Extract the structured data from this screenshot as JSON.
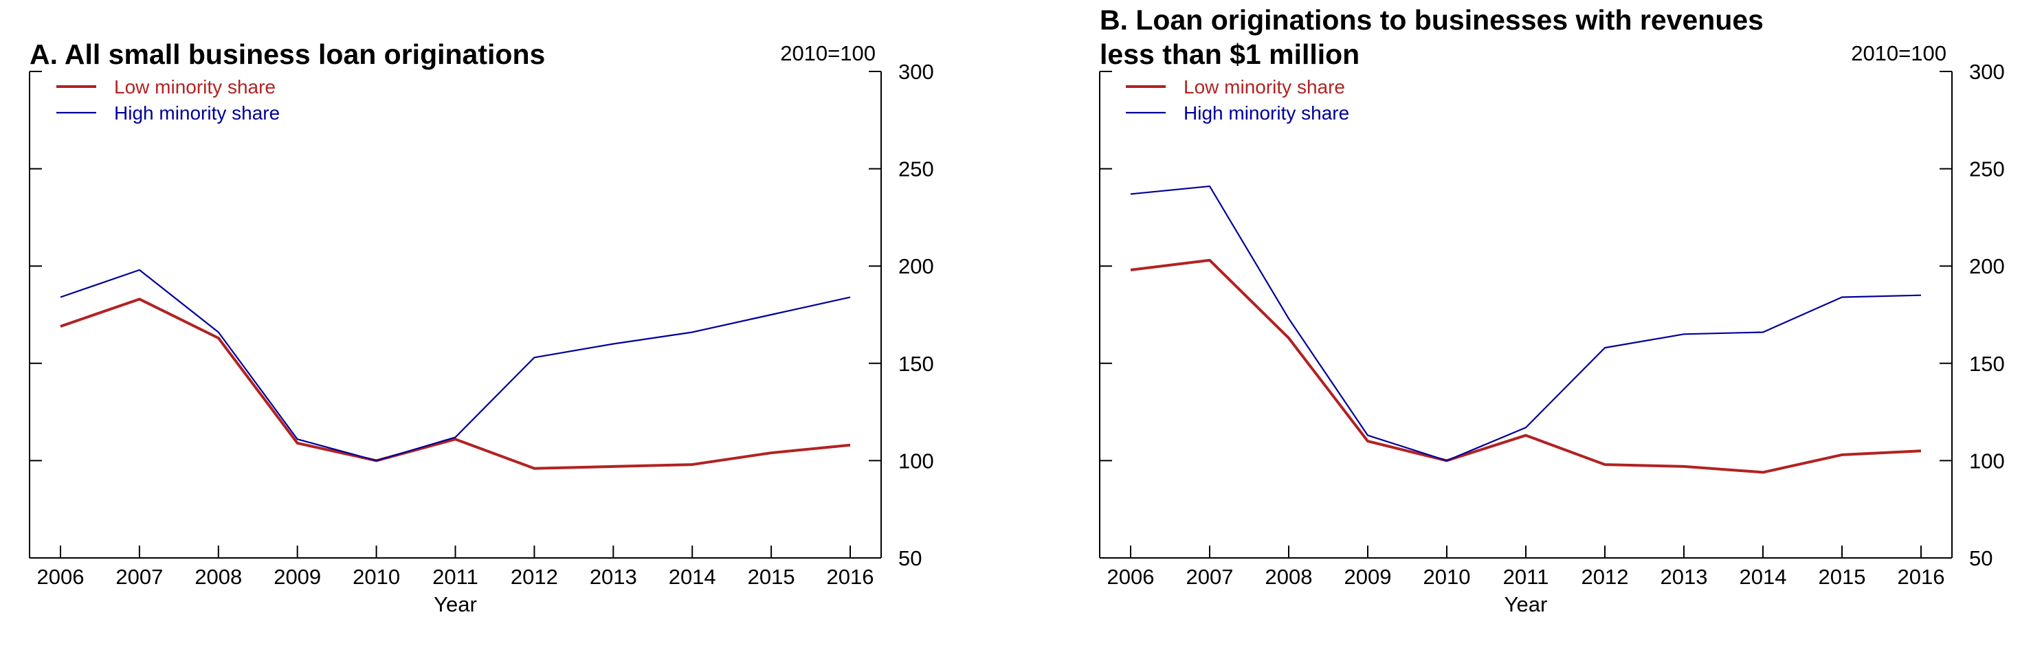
{
  "chart_data": [
    {
      "type": "line",
      "title": "A. All small business loan originations",
      "title_lines": [
        "A. All small business loan originations"
      ],
      "units_label": "2010=100",
      "xlabel": "Year",
      "ylabel": "",
      "x": [
        2006,
        2007,
        2008,
        2009,
        2010,
        2011,
        2012,
        2013,
        2014,
        2015,
        2016
      ],
      "ylim": [
        50,
        300
      ],
      "yticks": [
        50,
        100,
        150,
        200,
        250,
        300
      ],
      "grid": false,
      "legend_position": "top-left",
      "series": [
        {
          "name": "Low minority share",
          "color": "#b22222",
          "values": [
            169,
            183,
            163,
            109,
            100,
            111,
            96,
            97,
            98,
            104,
            108
          ]
        },
        {
          "name": "High minority share",
          "color": "#000099",
          "values": [
            184,
            198,
            166,
            111,
            100,
            112,
            153,
            160,
            166,
            175,
            184
          ]
        }
      ]
    },
    {
      "type": "line",
      "title": "B. Loan originations to businesses with revenues less than $1 million",
      "title_lines": [
        "B. Loan originations to businesses with revenues",
        "less than $1 million"
      ],
      "units_label": "2010=100",
      "xlabel": "Year",
      "ylabel": "",
      "x": [
        2006,
        2007,
        2008,
        2009,
        2010,
        2011,
        2012,
        2013,
        2014,
        2015,
        2016
      ],
      "ylim": [
        50,
        300
      ],
      "yticks": [
        50,
        100,
        150,
        200,
        250,
        300
      ],
      "grid": false,
      "legend_position": "top-left",
      "series": [
        {
          "name": "Low minority share",
          "color": "#b22222",
          "values": [
            198,
            203,
            163,
            110,
            100,
            113,
            98,
            97,
            94,
            103,
            105
          ]
        },
        {
          "name": "High minority share",
          "color": "#000099",
          "values": [
            237,
            241,
            173,
            113,
            100,
            117,
            158,
            165,
            166,
            184,
            185
          ]
        }
      ]
    }
  ]
}
